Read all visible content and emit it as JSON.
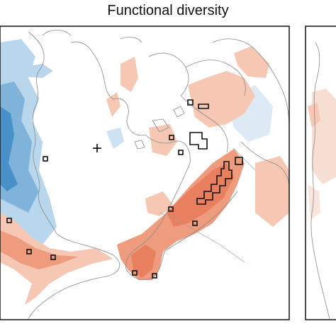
{
  "figure": {
    "title": "Functional diversity"
  },
  "legend_colors": {
    "positive": "#e8805f",
    "positive_light": "#f6c8b4",
    "negative": "#4a90c8",
    "negative_light": "#b9d7ec",
    "neutral": "#f4f1f1",
    "coast": "#8a8a8a",
    "frame": "#111111"
  },
  "markers": {
    "pole_symbol": "+"
  },
  "icons": {
    "pole": "plus-icon"
  }
}
